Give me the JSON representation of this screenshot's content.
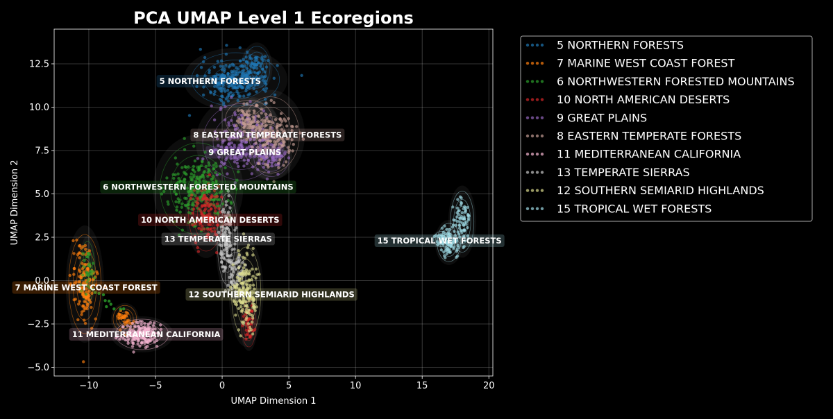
{
  "chart_data": {
    "type": "scatter",
    "title": "PCA UMAP Level 1 Ecoregions",
    "xlabel": "UMAP Dimension 1",
    "ylabel": "UMAP Dimension 2",
    "xlim": [
      -12.6,
      20.3
    ],
    "ylim": [
      -5.5,
      14.5
    ],
    "x_ticks": [
      -10,
      -5,
      0,
      5,
      10,
      15,
      20
    ],
    "y_ticks": [
      -5.0,
      -2.5,
      0.0,
      2.5,
      5.0,
      7.5,
      10.0,
      12.5
    ],
    "grid": true,
    "legend_position": "outside right",
    "background": "#000000",
    "series": [
      {
        "name": "5  NORTHERN FORESTS",
        "color": "#1f77b4",
        "label_x": -0.9,
        "label_y": 11.5,
        "clusters": [
          [
            1.0,
            11.6,
            1.5,
            0.7,
            260
          ],
          [
            2.6,
            12.3,
            0.45,
            0.55,
            40
          ]
        ]
      },
      {
        "name": "7  MARINE WEST COAST FOREST",
        "color": "#ff7f0e",
        "label_x": -10.2,
        "label_y": -0.4,
        "clusters": [
          [
            -10.3,
            -0.2,
            0.55,
            1.3,
            140
          ],
          [
            -7.3,
            -2.2,
            0.4,
            0.35,
            30
          ]
        ]
      },
      {
        "name": "6  NORTHWESTERN FORESTED MOUNTAINS",
        "color": "#2ca02c",
        "label_x": -1.8,
        "label_y": 5.4,
        "clusters": [
          [
            -1.8,
            5.3,
            1.3,
            1.2,
            230
          ],
          [
            -10.1,
            0.5,
            0.25,
            0.8,
            30
          ]
        ],
        "trail": [
          [
            -7.6,
            -1.8
          ],
          [
            -9.6,
            -0.6
          ]
        ]
      },
      {
        "name": "10  NORTH AMERICAN DESERTS",
        "color": "#d62728",
        "label_x": -0.9,
        "label_y": 3.5,
        "clusters": [
          [
            -1.2,
            3.9,
            0.6,
            1.0,
            120
          ],
          [
            2.0,
            -2.5,
            0.25,
            0.6,
            40
          ]
        ]
      },
      {
        "name": "9  GREAT PLAINS",
        "color": "#9467bd",
        "label_x": 1.7,
        "label_y": 7.4,
        "clusters": [
          [
            1.4,
            8.0,
            1.3,
            1.0,
            200
          ],
          [
            3.7,
            7.1,
            0.6,
            0.5,
            70
          ]
        ]
      },
      {
        "name": "8  EASTERN TEMPERATE FORESTS",
        "color": "#c49c94",
        "label_x": 3.4,
        "label_y": 8.4,
        "clusters": [
          [
            3.6,
            8.4,
            1.0,
            1.0,
            160
          ],
          [
            2.0,
            9.3,
            0.8,
            0.5,
            60
          ]
        ]
      },
      {
        "name": "11  MEDITERRANEAN CALIFORNIA",
        "color": "#f7b6d2",
        "label_x": -5.7,
        "label_y": -3.1,
        "clusters": [
          [
            -6.0,
            -3.1,
            0.9,
            0.4,
            160
          ]
        ]
      },
      {
        "name": "13  TEMPERATE SIERRAS",
        "color": "#c7c7c7",
        "label_x": -0.3,
        "label_y": 2.4,
        "clusters": [
          [
            0.4,
            2.4,
            0.35,
            1.2,
            110
          ],
          [
            1.0,
            0.3,
            0.35,
            0.6,
            50
          ]
        ]
      },
      {
        "name": "12  SOUTHERN SEMIARID HIGHLANDS",
        "color": "#dbdb8d",
        "label_x": 3.7,
        "label_y": -0.8,
        "clusters": [
          [
            1.8,
            -0.7,
            0.5,
            1.2,
            170
          ]
        ]
      },
      {
        "name": "15  TROPICAL WET FORESTS",
        "color": "#9edae5",
        "label_x": 16.3,
        "label_y": 2.3,
        "clusters": [
          [
            17.0,
            2.2,
            0.4,
            0.5,
            70
          ],
          [
            18.0,
            3.4,
            0.4,
            0.8,
            70
          ],
          [
            16.5,
            2.4,
            0.3,
            0.2,
            20
          ]
        ]
      }
    ]
  }
}
